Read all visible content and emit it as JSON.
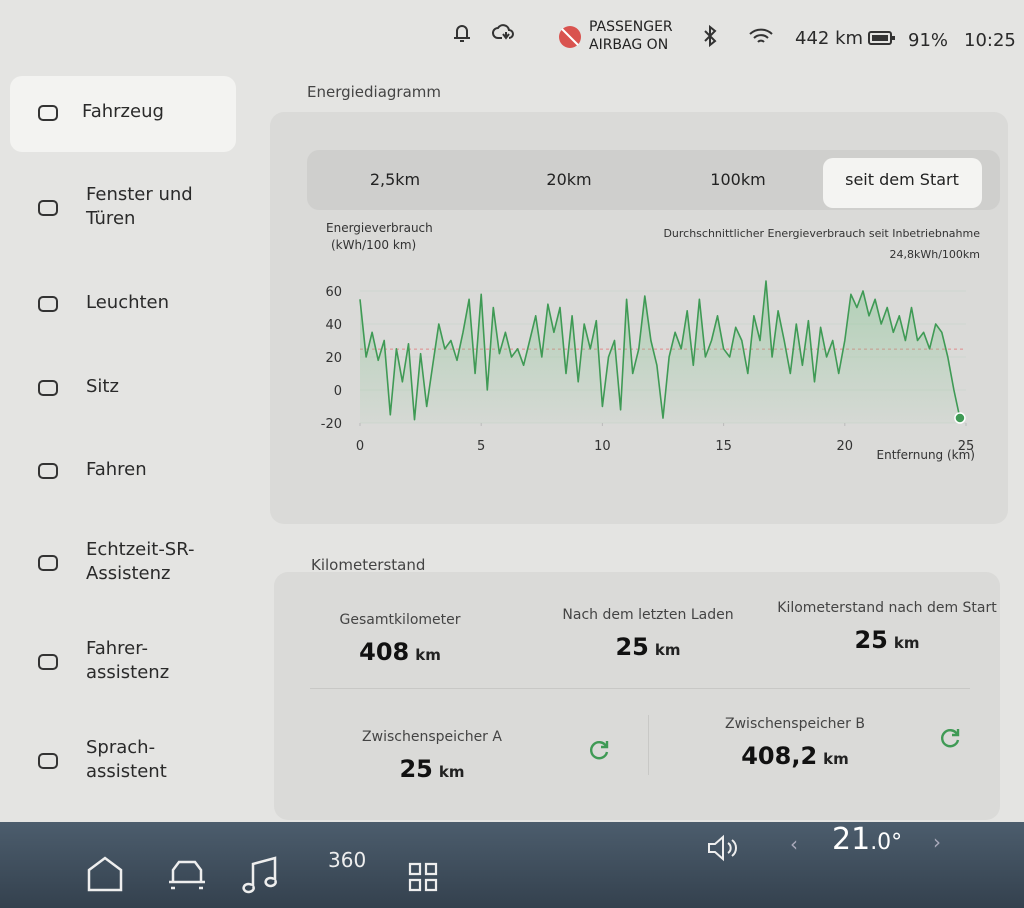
{
  "status_bar": {
    "airbag": [
      "PASSENGER",
      "AIRBAG ON"
    ],
    "range": "442 km",
    "battery": "91%",
    "time": "10:25"
  },
  "sidebar": {
    "items": [
      [
        "Fahrzeug"
      ],
      [
        "Fenster und",
        "Türen"
      ],
      [
        "Leuchten"
      ],
      [
        "Sitz"
      ],
      [
        "Fahren"
      ],
      [
        "Echtzeit-SR-",
        "Assistenz"
      ],
      [
        "Fahrer-",
        "assistenz"
      ],
      [
        "Sprach-",
        "assistent"
      ]
    ]
  },
  "energy": {
    "section_title": "Energiediagramm",
    "tabs": [
      "2,5km",
      "20km",
      "100km",
      "seit dem Start"
    ]
  },
  "chart_data": {
    "type": "line",
    "y_label": [
      "Energieverbrauch",
      "(kWh/100 km)"
    ],
    "x_label": "Entfernung (km)",
    "annotation": "Durchschnittlicher Energieverbrauch seit Inbetriebnahme",
    "average": 24.8,
    "average_label": "24,8kWh/100km",
    "average_color": "#e08a8a",
    "xlim": [
      0,
      25
    ],
    "xticks": [
      0,
      5,
      10,
      15,
      20,
      25
    ],
    "ylim": [
      -20,
      65
    ],
    "yticks": [
      -20,
      0,
      20,
      40,
      60
    ],
    "grid": true,
    "x": [
      0,
      0.25,
      0.5,
      0.75,
      1,
      1.25,
      1.5,
      1.75,
      2,
      2.25,
      2.5,
      2.75,
      3,
      3.25,
      3.5,
      3.75,
      4,
      4.25,
      4.5,
      4.75,
      5,
      5.25,
      5.5,
      5.75,
      6,
      6.25,
      6.5,
      6.75,
      7,
      7.25,
      7.5,
      7.75,
      8,
      8.25,
      8.5,
      8.75,
      9,
      9.25,
      9.5,
      9.75,
      10,
      10.25,
      10.5,
      10.75,
      11,
      11.25,
      11.5,
      11.75,
      12,
      12.25,
      12.5,
      12.75,
      13,
      13.25,
      13.5,
      13.75,
      14,
      14.25,
      14.5,
      14.75,
      15,
      15.25,
      15.5,
      15.75,
      16,
      16.25,
      16.5,
      16.75,
      17,
      17.25,
      17.5,
      17.75,
      18,
      18.25,
      18.5,
      18.75,
      19,
      19.25,
      19.5,
      19.75,
      20,
      20.25,
      20.5,
      20.75,
      21,
      21.25,
      21.5,
      21.75,
      22,
      22.25,
      22.5,
      22.75,
      23,
      23.25,
      23.5,
      23.75,
      24,
      24.25,
      24.5,
      24.75
    ],
    "series": [
      {
        "color": "#3f9a55",
        "values": [
          55,
          20,
          35,
          18,
          30,
          -15,
          25,
          5,
          28,
          -18,
          22,
          -10,
          15,
          40,
          25,
          30,
          18,
          35,
          55,
          10,
          58,
          0,
          50,
          22,
          35,
          20,
          25,
          15,
          30,
          45,
          20,
          52,
          35,
          50,
          10,
          45,
          5,
          40,
          25,
          42,
          -10,
          20,
          30,
          -12,
          55,
          10,
          25,
          57,
          30,
          15,
          -17,
          20,
          35,
          25,
          48,
          15,
          55,
          20,
          30,
          45,
          25,
          20,
          38,
          30,
          10,
          45,
          30,
          66,
          20,
          48,
          30,
          10,
          40,
          15,
          42,
          5,
          38,
          20,
          30,
          10,
          30,
          58,
          50,
          60,
          45,
          55,
          40,
          50,
          35,
          45,
          30,
          50,
          30,
          35,
          25,
          40,
          35,
          20,
          0,
          -17
        ]
      }
    ]
  },
  "odometer": {
    "section_title": "Kilometerstand",
    "unit": "km",
    "cards": [
      {
        "label": "Gesamtkilometer",
        "value": "408"
      },
      {
        "label": "Nach dem letzten Laden",
        "value": "25"
      },
      {
        "label": "Kilometerstand nach dem Start",
        "value": "25"
      },
      {
        "label": "Zwischenspeicher A",
        "value": "25"
      },
      {
        "label": "Zwischenspeicher B",
        "value": "408,2"
      }
    ]
  },
  "bottom_bar": {
    "camera": "360",
    "temperature": "21",
    "temperature_fraction": ".0°"
  }
}
